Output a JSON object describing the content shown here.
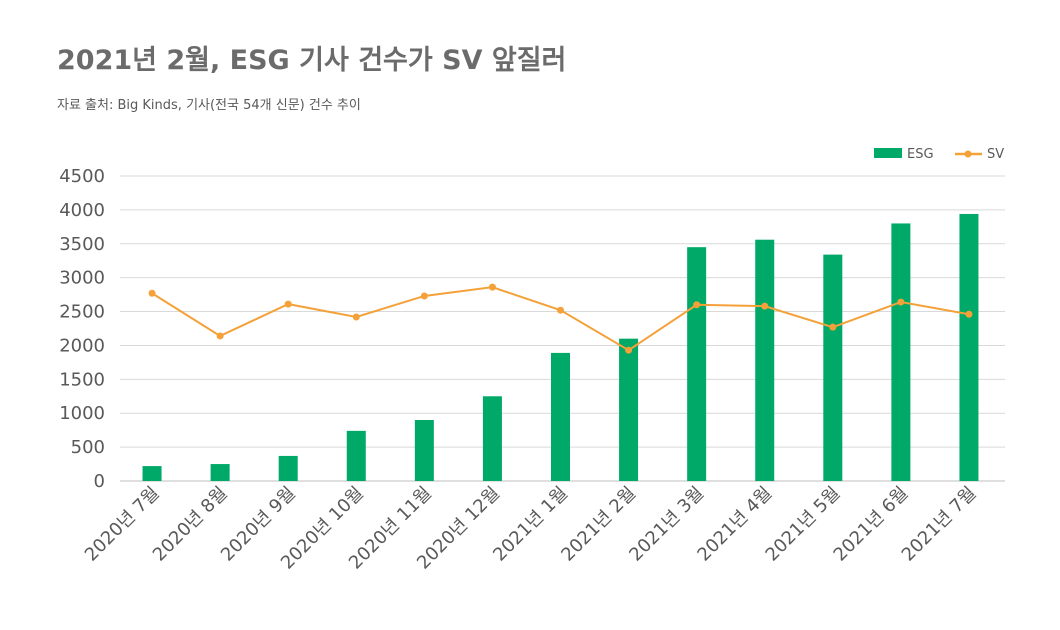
{
  "title": "2021년 2월, ESG 기사 건수가 SV 앞질러",
  "subtitle": "자료 출처: Big Kinds,  기사(전국 54개 신문) 건수 추이",
  "chart_data": {
    "type": "bar+line",
    "title": "2021년 2월, ESG 기사 건수가 SV 앞질러",
    "subtitle": "자료 출처: Big Kinds,  기사(전국 54개 신문) 건수 추이",
    "categories": [
      "2020년 7월",
      "2020년 8월",
      "2020년 9월",
      "2020년 10월",
      "2020년 11월",
      "2020년 12월",
      "2021년 1월",
      "2021년 2월",
      "2021년 3월",
      "2021년 4월",
      "2021년 5월",
      "2021년 6월",
      "2021년 7월"
    ],
    "series": [
      {
        "name": "ESG",
        "type": "bar",
        "color": "#00a968",
        "values": [
          220,
          250,
          370,
          740,
          900,
          1250,
          1890,
          2100,
          3450,
          3560,
          3340,
          3800,
          3940
        ]
      },
      {
        "name": "SV",
        "type": "line",
        "color": "#f4a13a",
        "values": [
          2770,
          2140,
          2610,
          2420,
          2730,
          2860,
          2520,
          1930,
          2600,
          2580,
          2270,
          2640,
          2460
        ]
      }
    ],
    "ylim": [
      0,
      4500
    ],
    "yticks": [
      0,
      500,
      1000,
      1500,
      2000,
      2500,
      3000,
      3500,
      4000,
      4500
    ],
    "grid": true,
    "legend_position": "top-right"
  }
}
